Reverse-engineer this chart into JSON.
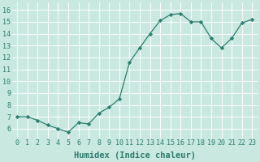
{
  "x": [
    0,
    1,
    2,
    3,
    4,
    5,
    6,
    7,
    8,
    9,
    10,
    11,
    12,
    13,
    14,
    15,
    16,
    17,
    18,
    19,
    20,
    21,
    22,
    23
  ],
  "y": [
    7.0,
    7.0,
    6.7,
    6.3,
    6.0,
    5.7,
    6.5,
    6.4,
    7.3,
    7.8,
    8.5,
    11.6,
    12.8,
    14.0,
    15.1,
    15.6,
    15.7,
    15.0,
    15.0,
    13.6,
    12.8,
    13.6,
    14.9,
    15.2
  ],
  "line_color": "#2e7d6e",
  "marker": "D",
  "marker_size": 2.2,
  "bg_color": "#c8e8e0",
  "grid_color": "#b0d4cc",
  "xlabel": "Humidex (Indice chaleur)",
  "xlabel_fontsize": 7.5,
  "xlabel_color": "#2e7d6e",
  "xtick_labels": [
    "0",
    "1",
    "2",
    "3",
    "4",
    "5",
    "6",
    "7",
    "8",
    "9",
    "10",
    "11",
    "12",
    "13",
    "14",
    "15",
    "16",
    "17",
    "18",
    "19",
    "20",
    "21",
    "22",
    "23"
  ],
  "ytick_vals": [
    6,
    7,
    8,
    9,
    10,
    11,
    12,
    13,
    14,
    15,
    16
  ],
  "ylim": [
    5.2,
    16.6
  ],
  "xlim": [
    -0.5,
    23.5
  ],
  "tick_fontsize": 6.0,
  "tick_color": "#2e7d6e"
}
